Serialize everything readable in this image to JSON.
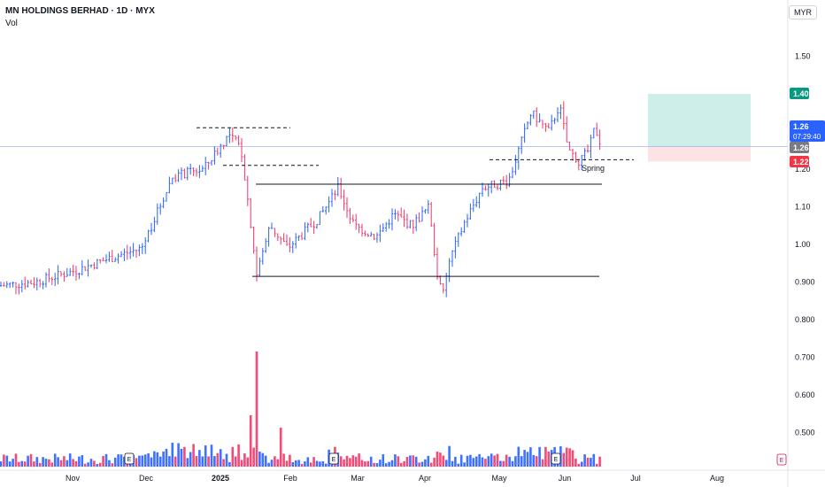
{
  "header": {
    "title": "MN HOLDINGS BERHAD · 1D · MYX",
    "indicator": "Vol",
    "currency": "MYR"
  },
  "colors": {
    "up": "#2962ff",
    "down": "#f23668",
    "target_zone": "#cdeee9",
    "stop_zone": "#fde3e4",
    "target_label": "#089981",
    "current_label": "#2962ff",
    "stop_label": "#f23645",
    "prev_label": "#787b86"
  },
  "price_labels": {
    "target": "1.40",
    "current": "1.26",
    "countdown": "07:29:40",
    "prev": "1.26",
    "stop": "1.22"
  },
  "annotations": {
    "spring": "Spring"
  },
  "earnings_marker": "E",
  "chart_data": {
    "type": "candlestick",
    "title": "MN HOLDINGS BERHAD · 1D · MYX",
    "y_axis_ticks": [
      1.5,
      1.2,
      1.1,
      1.0,
      0.9,
      0.8,
      0.7,
      0.6,
      0.5
    ],
    "y_tick_labels": [
      "1.50",
      "1.20",
      "1.10",
      "1.00",
      "0.900",
      "0.800",
      "0.700",
      "0.600",
      "0.500"
    ],
    "x_tick_labels": [
      "Nov",
      "Dec",
      "2025",
      "Feb",
      "Mar",
      "Apr",
      "May",
      "Jun",
      "Jul",
      "Aug"
    ],
    "ylim": [
      0.43,
      1.62
    ],
    "levels": {
      "trading_range_top": 1.16,
      "trading_range_bottom": 0.915,
      "prior_high": 1.31,
      "prior_support": 1.21,
      "spring_support": 1.225
    },
    "key_points": {
      "start_price": 0.89,
      "dec_high": 1.3,
      "jan_low": 0.915,
      "apr_low": 0.83,
      "may_high": 1.39,
      "last_price": 1.26
    },
    "position_zone": {
      "entry": 1.26,
      "target": 1.4,
      "stop": 1.22
    },
    "volume": {
      "max_spike_month": "2025",
      "earnings_markers": [
        "Dec",
        "Mar",
        "Jun"
      ]
    }
  }
}
